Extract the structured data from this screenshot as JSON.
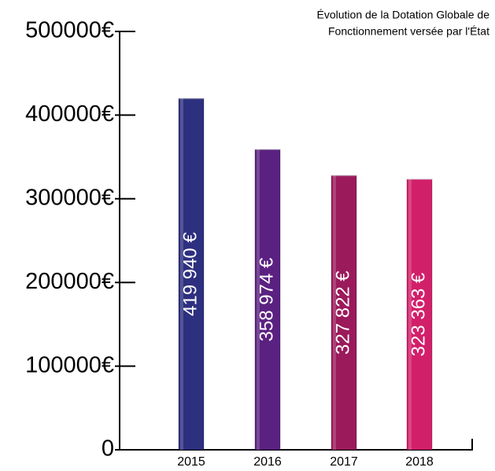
{
  "chart_data": {
    "type": "bar",
    "title": [
      "Évolution de la Dotation Globale de",
      "Fonctionnement versée par l'État"
    ],
    "categories": [
      "2015",
      "2016",
      "2017",
      "2018"
    ],
    "values": [
      419940,
      358974,
      327822,
      323363
    ],
    "value_labels": [
      "419 940 €",
      "358 974 €",
      "327 822 €",
      "323 363 €"
    ],
    "colors": [
      "#2d2f7f",
      "#5b2181",
      "#9a1a5b",
      "#d21f6a"
    ],
    "ylim": [
      0,
      500000
    ],
    "yticks": [
      0,
      {
        "value": 100000,
        "label": "100000€"
      },
      {
        "value": 200000,
        "label": "200000€"
      },
      {
        "value": 300000,
        "label": "300000€"
      },
      {
        "value": 400000,
        "label": "400000€"
      },
      {
        "value": 500000,
        "label": "500000€"
      }
    ],
    "grid": false
  }
}
